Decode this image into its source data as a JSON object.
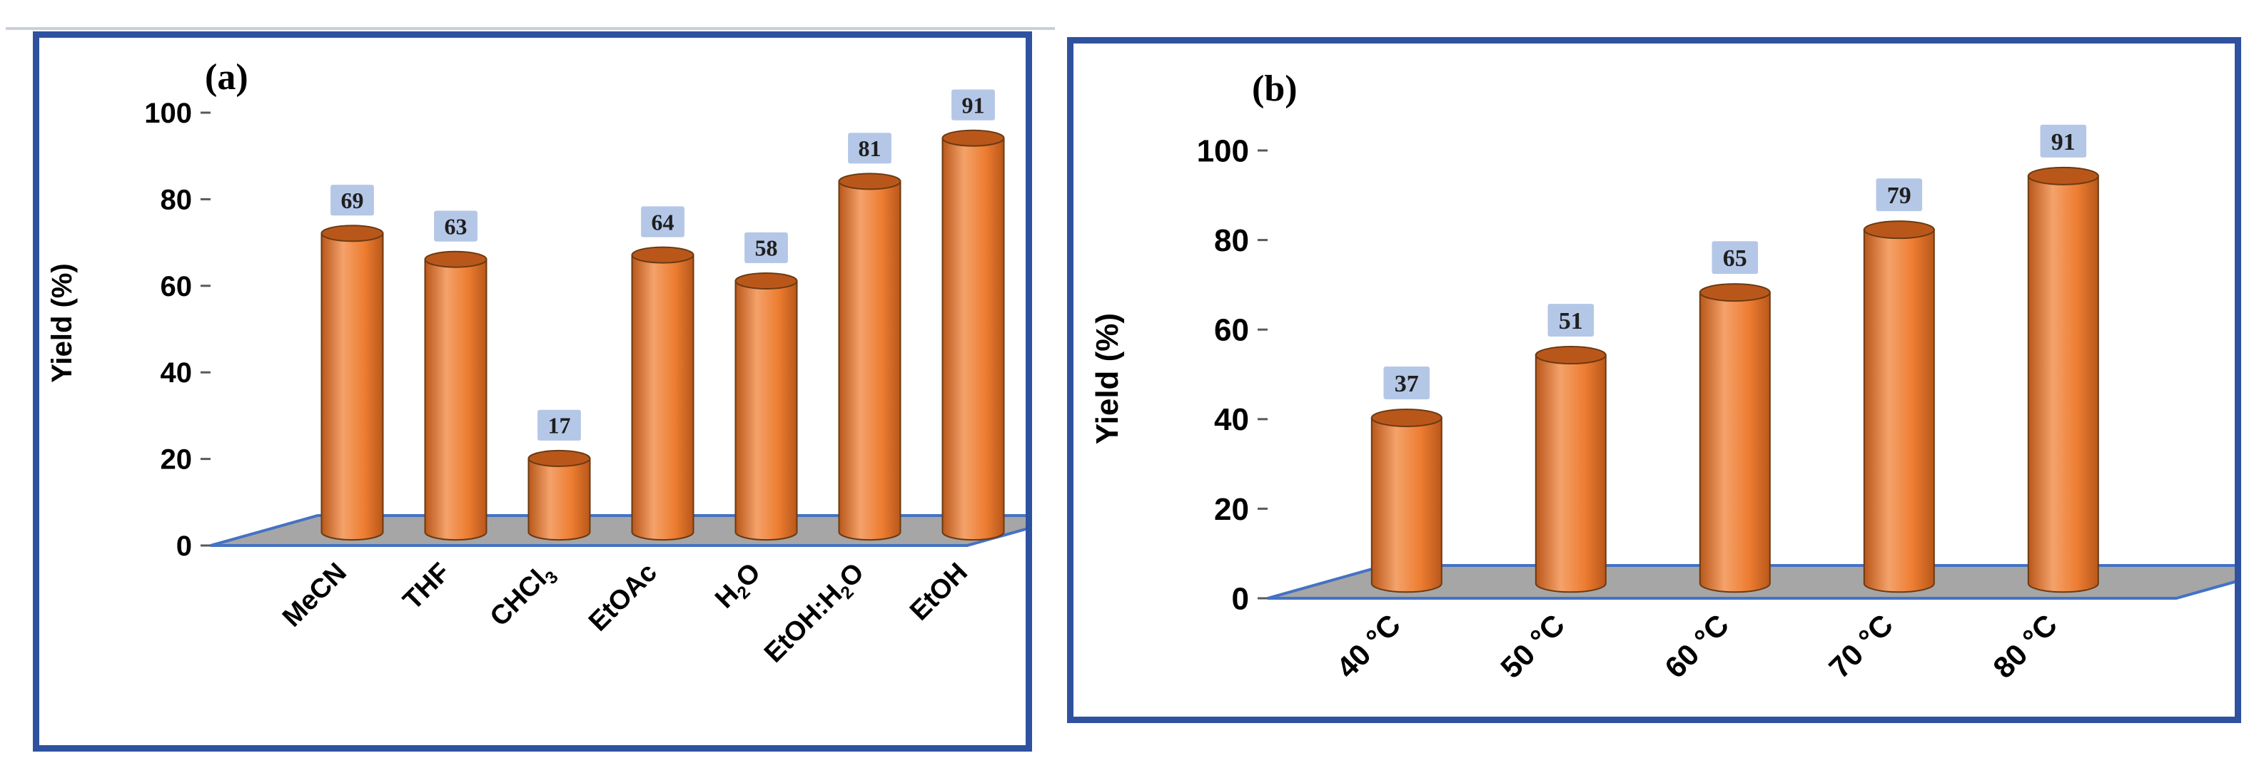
{
  "colors": {
    "frame": "#2f52a0",
    "bar": "#ed7d31",
    "bar_dark": "#b9571a",
    "bar_light": "#f4a26b",
    "floor": "#a6a6a6",
    "floor_edge": "#4472c4",
    "label_bg": "#b4c7e7"
  },
  "chart_data": [
    {
      "type": "bar",
      "panel_label": "(a)",
      "categories": [
        "MeCN",
        "THF",
        "CHCl3",
        "EtOAc",
        "H2O",
        "EtOH:H2O",
        "EtOH"
      ],
      "category_display": [
        {
          "main": "MeCN",
          "sub": "",
          "rest": ""
        },
        {
          "main": "THF",
          "sub": "",
          "rest": ""
        },
        {
          "main": "CHCl",
          "sub": "3",
          "rest": ""
        },
        {
          "main": "EtOAc",
          "sub": "",
          "rest": ""
        },
        {
          "main": "H",
          "sub": "2",
          "rest": "O"
        },
        {
          "main": "EtOH:H",
          "sub": "2",
          "rest": "O"
        },
        {
          "main": "EtOH",
          "sub": "",
          "rest": ""
        }
      ],
      "values": [
        69,
        63,
        17,
        64,
        58,
        81,
        91
      ],
      "data_labels": [
        "69",
        "63",
        "17",
        "64",
        "58",
        "81",
        "91"
      ],
      "ylabel": "Yield (%)",
      "xlabel": "",
      "ylim": [
        0,
        100
      ],
      "yticks": [
        0,
        20,
        40,
        60,
        80,
        100
      ],
      "ytick_labels": [
        "0",
        "20",
        "40",
        "60",
        "80",
        "100"
      ]
    },
    {
      "type": "bar",
      "panel_label": "(b)",
      "categories": [
        "40 °C",
        "50 °C",
        "60 °C",
        "70 °C",
        "80 °C"
      ],
      "category_display": [
        {
          "main": "40 °C",
          "sub": "",
          "rest": ""
        },
        {
          "main": "50 °C",
          "sub": "",
          "rest": ""
        },
        {
          "main": "60 °C",
          "sub": "",
          "rest": ""
        },
        {
          "main": "70 °C",
          "sub": "",
          "rest": ""
        },
        {
          "main": "80 °C",
          "sub": "",
          "rest": ""
        }
      ],
      "values": [
        37,
        51,
        65,
        79,
        91
      ],
      "data_labels": [
        "37",
        "51",
        "65",
        "79",
        "91"
      ],
      "ylabel": "Yield (%)",
      "xlabel": "",
      "ylim": [
        0,
        100
      ],
      "yticks": [
        0,
        20,
        40,
        60,
        80,
        100
      ],
      "ytick_labels": [
        "0",
        "20",
        "40",
        "60",
        "80",
        "100"
      ]
    }
  ]
}
